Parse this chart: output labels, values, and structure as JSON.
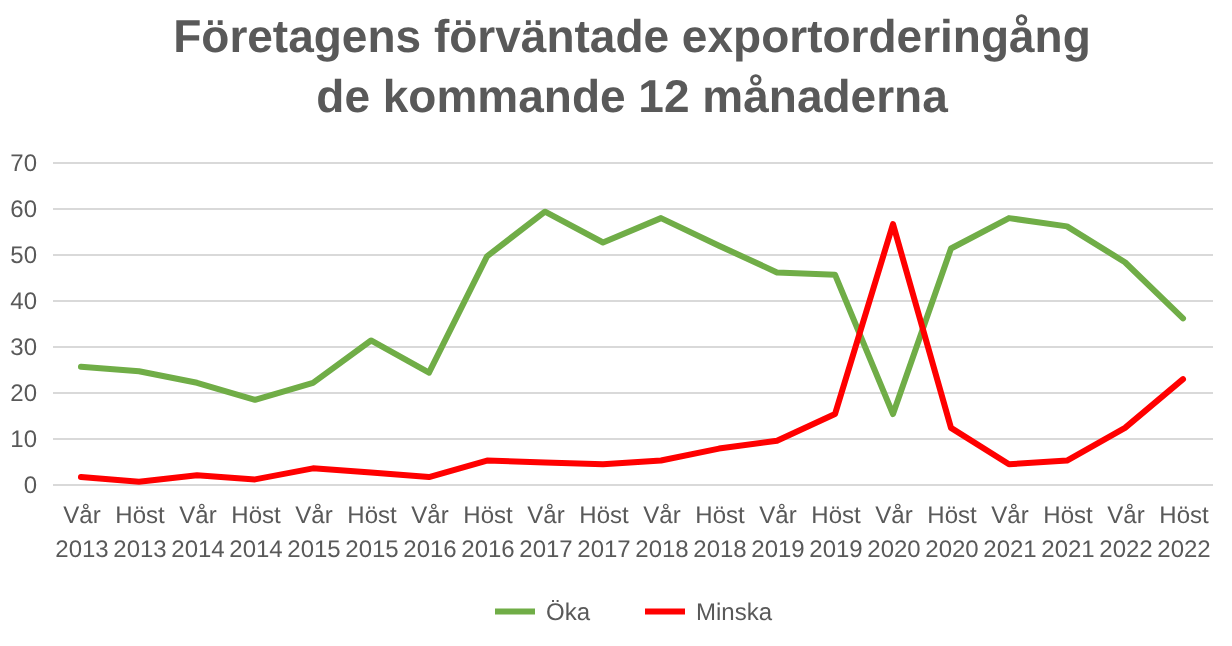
{
  "chart_data": {
    "type": "line",
    "title": "Företagens förväntade exportorderingång\nde kommande 12 månaderna",
    "categories": [
      "Vår 2013",
      "Höst 2013",
      "Vår 2014",
      "Höst 2014",
      "Vår 2015",
      "Höst 2015",
      "Vår 2016",
      "Höst 2016",
      "Vår 2017",
      "Höst 2017",
      "Vår 2018",
      "Höst 2018",
      "Vår 2019",
      "Höst 2019",
      "Vår 2020",
      "Höst 2020",
      "Vår 2021",
      "Höst 2021",
      "Vår 2022",
      "Höst 2022"
    ],
    "series": [
      {
        "name": "Öka",
        "color": "#70ad47",
        "values": [
          25.5,
          24.5,
          22,
          18.3,
          22,
          31.2,
          24.2,
          49.5,
          59.2,
          52.5,
          57.8,
          51.8,
          46,
          45.5,
          15.2,
          51.2,
          57.8,
          56,
          48.2,
          36
        ]
      },
      {
        "name": "Minska",
        "color": "#ff0000",
        "values": [
          1.5,
          0.5,
          1.9,
          1,
          3.4,
          2.5,
          1.5,
          5.1,
          4.7,
          4.3,
          5.1,
          7.7,
          9.4,
          15.2,
          56.5,
          12.2,
          4.3,
          5.1,
          12.2,
          22.8
        ]
      }
    ],
    "ylim": [
      0,
      70
    ],
    "yticks": [
      0,
      10,
      20,
      30,
      40,
      50,
      60,
      70
    ],
    "grid": "y",
    "legend": "bottom",
    "marker": "none",
    "line_style": "solid"
  }
}
